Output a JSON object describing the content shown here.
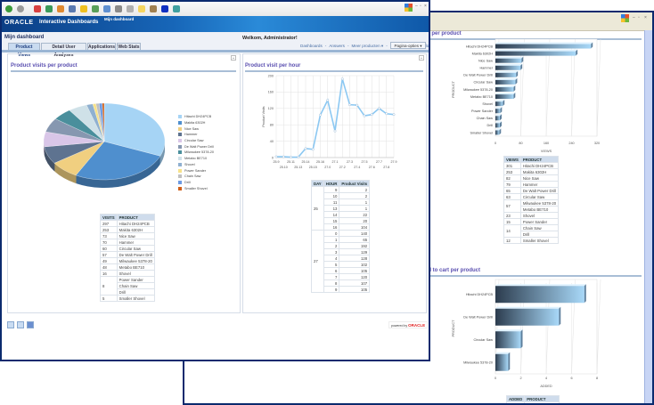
{
  "app": {
    "brand": "ORACLE",
    "product": "Interactive Dashboards",
    "dashboard_name": "Mijn dashboard"
  },
  "header": {
    "page_title": "Mijn dashboard",
    "welcome": "Welkom, Administrator!",
    "links": [
      "Dashboards",
      "Answers",
      "Meer producten ▾",
      "Instellingen ▾",
      "Uitloggen"
    ],
    "separator": "-",
    "page_options": "Pagina-opties ▾"
  },
  "tabs": [
    {
      "label": "Product Views",
      "active": true
    },
    {
      "label": "Detail User Analyses"
    },
    {
      "label": "Applications"
    },
    {
      "label": "Web Stats"
    }
  ],
  "toolbar_icons": [
    "back-icon",
    "forward-icon",
    "stop-icon",
    "refresh-icon",
    "home-icon",
    "search-icon",
    "favorites-icon",
    "history-icon",
    "mail-icon",
    "print-icon",
    "edit-icon",
    "notes-icon",
    "messenger-icon",
    "bluetooth-icon",
    "network-icon"
  ],
  "window_controls": {
    "minimize": "–",
    "maximize": "▫",
    "close": "×"
  },
  "footer": {
    "powered_by": "powered by",
    "oracle": "ORACLE"
  },
  "pie_panel": {
    "title": "Product visits per product",
    "table_headers": [
      "VISITS",
      "PRODUCT"
    ],
    "rows": [
      [
        "297",
        "Hitachi DH24PCB"
      ],
      [
        "253",
        "Makita 6302H"
      ],
      [
        "73",
        "Nice Saw"
      ],
      [
        "70",
        "Hammer"
      ],
      [
        "60",
        "Circular Saw"
      ],
      [
        "57",
        "De Walt Power Drill"
      ],
      [
        "49",
        "Milwaukee 5378-20"
      ],
      [
        "48",
        "Metabo BE710"
      ],
      [
        "16",
        "Shovel"
      ],
      [
        "8",
        "Power Sander"
      ],
      [
        "",
        "Chain Saw"
      ],
      [
        "",
        "Drill"
      ],
      [
        "5",
        "Smaller Shovel"
      ]
    ]
  },
  "line_panel": {
    "title": "Product visit per hour",
    "table_headers": [
      "DAY",
      "HOUR",
      "Product Visits"
    ],
    "days": [
      {
        "day": "25",
        "hours": [
          "9",
          "10",
          "11",
          "13",
          "14",
          "15",
          "16"
        ],
        "visits": [
          "2",
          "2",
          "1",
          "1",
          "22",
          "20",
          "104"
        ]
      },
      {
        "day": "27",
        "hours": [
          "0",
          "1",
          "2",
          "3",
          "4",
          "5",
          "6",
          "7",
          "8",
          "9"
        ],
        "visits": [
          "140",
          "65",
          "192",
          "129",
          "128",
          "102",
          "105",
          "120",
          "107",
          "105"
        ]
      }
    ]
  },
  "views_panel": {
    "title": "Product views per product",
    "table_headers": [
      "VIEWS",
      "PRODUCT"
    ],
    "rows": [
      [
        "301",
        "Hitachi DH24PCB"
      ],
      [
        "253",
        "Makita 6302H"
      ],
      [
        "82",
        "Nice Saw"
      ],
      [
        "79",
        "Hammer"
      ],
      [
        "65",
        "De Walt Power Drill"
      ],
      [
        "63",
        "Circular Saw"
      ],
      [
        "57",
        "Milwaukee 5378-20"
      ],
      [
        "",
        "Metabo BE710"
      ],
      [
        "23",
        "Shovel"
      ],
      [
        "15",
        "Power Sander"
      ],
      [
        "14",
        "Chain Saw"
      ],
      [
        "",
        "Drill"
      ],
      [
        "12",
        "Smaller Shovel"
      ]
    ]
  },
  "cart_panel": {
    "title": "Product added to cart per product",
    "table_headers": [
      "ADDED",
      "PRODUCT"
    ],
    "rows": [
      [
        "7",
        "Hitachi DH24PCB"
      ]
    ]
  },
  "chart_data": [
    {
      "type": "pie",
      "title": "Product visits per product",
      "legend": "right",
      "categories": [
        "Hitachi DH24PCB",
        "Makita 6302H",
        "Nice Saw",
        "Hammer",
        "Circular Saw",
        "De Walt Power Drill",
        "Milwaukee 5378-20",
        "Metabo BE710",
        "Shovel",
        "Power Sander",
        "Chain Saw",
        "Drill",
        "Smaller Shovel"
      ],
      "values": [
        297,
        253,
        73,
        70,
        60,
        57,
        49,
        48,
        16,
        8,
        8,
        8,
        5
      ],
      "colors": [
        "#a6d4f5",
        "#4f8fce",
        "#f0cf80",
        "#5e7390",
        "#d9c6e8",
        "#8697b0",
        "#4a8f9c",
        "#cfe1e8",
        "#8fb0d0",
        "#f7e28a",
        "#c0c0c0",
        "#6d9be3",
        "#d0601a"
      ]
    },
    {
      "type": "line",
      "title": "Product visit per hour",
      "ylabel": "Product Visits",
      "ylim": [
        0,
        200
      ],
      "yticks": [
        0,
        40,
        80,
        120,
        160,
        200
      ],
      "grid": true,
      "color": "#8cc8f2",
      "x": [
        "25.9",
        "25.10",
        "25.11",
        "25.13",
        "25.14",
        "25.15",
        "25.16",
        "27.0",
        "27.1",
        "27.2",
        "27.3",
        "27.4",
        "27.5",
        "27.6",
        "27.7",
        "27.8",
        "27.9"
      ],
      "values": [
        2,
        2,
        1,
        1,
        22,
        20,
        104,
        140,
        65,
        192,
        129,
        128,
        102,
        105,
        120,
        107,
        105
      ]
    },
    {
      "type": "bar",
      "orientation": "horizontal",
      "title": "Product views per product",
      "xlabel": "VIEWS",
      "ylabel": "PRODUCT",
      "xlim": [
        0,
        320
      ],
      "xticks": [
        0,
        80,
        160,
        240,
        320
      ],
      "grid": true,
      "categories": [
        "Hitachi DH24PCB",
        "Makita 6302H",
        "Nice Saw",
        "Hammer",
        "De Walt Power Drill",
        "Circular Saw",
        "Milwaukee 5378-20",
        "Metabo BE710",
        "Shovel",
        "Power Sander",
        "Chain Saw",
        "Drill",
        "Smaller Shovel"
      ],
      "values": [
        301,
        253,
        82,
        79,
        65,
        63,
        57,
        57,
        23,
        15,
        14,
        14,
        12
      ]
    },
    {
      "type": "bar",
      "orientation": "horizontal",
      "title": "Product added to cart per product",
      "xlabel": "ADDED",
      "ylabel": "PRODUCT",
      "xlim": [
        0,
        8
      ],
      "xticks": [
        0,
        2,
        4,
        6,
        8
      ],
      "grid": true,
      "categories": [
        "Hitachi DH24PCB",
        "De Walt Power Drill",
        "Circular Saw",
        "Milwaukee 5378-20"
      ],
      "values": [
        7,
        5,
        2,
        1
      ]
    }
  ]
}
